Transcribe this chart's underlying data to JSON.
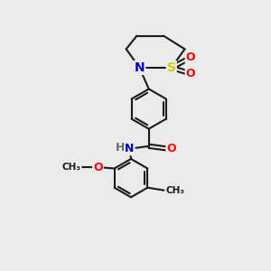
{
  "bg_color": "#ebebeb",
  "bond_color": "#1a1a1a",
  "bond_width": 1.5,
  "atom_colors": {
    "N": "#0000cc",
    "O": "#ff0000",
    "S": "#cccc00",
    "C": "#1a1a1a",
    "H": "#607070"
  }
}
